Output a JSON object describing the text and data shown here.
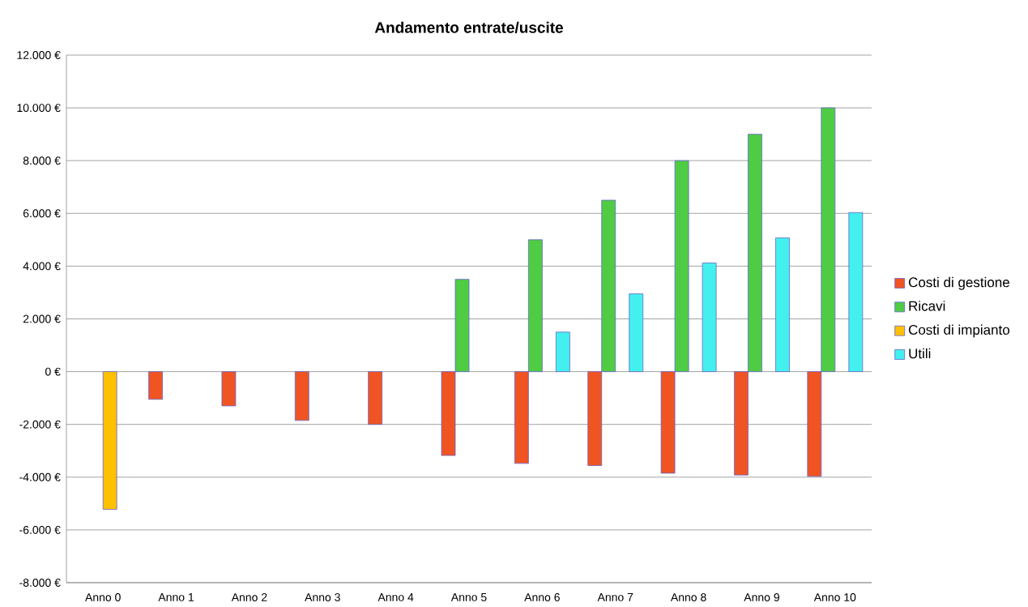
{
  "chart_data": {
    "type": "bar",
    "title": "Andamento entrate/uscite",
    "categories": [
      "Anno 0",
      "Anno 1",
      "Anno 2",
      "Anno 3",
      "Anno 4",
      "Anno 5",
      "Anno 6",
      "Anno 7",
      "Anno 8",
      "Anno 9",
      "Anno 10"
    ],
    "series": [
      {
        "name": "Costi di gestione",
        "color": "#f05423",
        "values": [
          null,
          -1050,
          -1300,
          -1850,
          -2000,
          -3180,
          -3480,
          -3560,
          -3850,
          -3920,
          -3970
        ]
      },
      {
        "name": "Ricavi",
        "color": "#4fcc44",
        "values": [
          null,
          null,
          null,
          null,
          null,
          3500,
          5000,
          6500,
          8000,
          9000,
          10000
        ]
      },
      {
        "name": "Costi di impianto",
        "color": "#ffc000",
        "values": [
          -5220,
          null,
          null,
          null,
          null,
          null,
          null,
          null,
          null,
          null,
          null
        ]
      },
      {
        "name": "Utili",
        "color": "#44f0ee",
        "values": [
          null,
          null,
          null,
          null,
          null,
          null,
          1500,
          2950,
          4120,
          5070,
          6030
        ]
      }
    ],
    "ylim": [
      -8000,
      12000
    ],
    "yticks": [
      {
        "value": -8000,
        "label": "-8.000 €"
      },
      {
        "value": -6000,
        "label": "-6.000 €"
      },
      {
        "value": -4000,
        "label": "-4.000 €"
      },
      {
        "value": -2000,
        "label": "-2.000 €"
      },
      {
        "value": 0,
        "label": "0 €"
      },
      {
        "value": 2000,
        "label": "2.000 €"
      },
      {
        "value": 4000,
        "label": "4.000 €"
      },
      {
        "value": 6000,
        "label": "6.000 €"
      },
      {
        "value": 8000,
        "label": "8.000 €"
      },
      {
        "value": 10000,
        "label": "10.000 €"
      },
      {
        "value": 12000,
        "label": "12.000 €"
      }
    ],
    "grid": "y",
    "legend": "right"
  }
}
